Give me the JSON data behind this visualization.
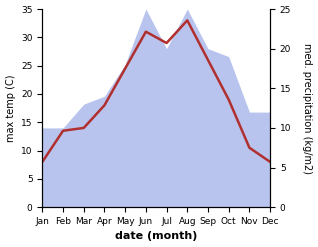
{
  "months": [
    "Jan",
    "Feb",
    "Mar",
    "Apr",
    "May",
    "Jun",
    "Jul",
    "Aug",
    "Sep",
    "Oct",
    "Nov",
    "Dec"
  ],
  "temperature": [
    8,
    13.5,
    14,
    18,
    24.5,
    31,
    29,
    33,
    26,
    19,
    10.5,
    8
  ],
  "precipitation": [
    10,
    10,
    13,
    14,
    18,
    25,
    20,
    25,
    20,
    19,
    12,
    12
  ],
  "temp_color": "#b03030",
  "precip_fill_color": "#b8c4ee",
  "background_color": "#ffffff",
  "xlabel": "date (month)",
  "ylabel_left": "max temp (C)",
  "ylabel_right": "med. precipitation (kg/m2)",
  "ylim_left": [
    0,
    35
  ],
  "ylim_right": [
    0,
    25
  ],
  "yticks_left": [
    0,
    5,
    10,
    15,
    20,
    25,
    30,
    35
  ],
  "yticks_right": [
    0,
    5,
    10,
    15,
    20,
    25
  ],
  "line_width": 1.8,
  "xlabel_fontsize": 8,
  "ylabel_fontsize": 7,
  "tick_fontsize": 6.5
}
